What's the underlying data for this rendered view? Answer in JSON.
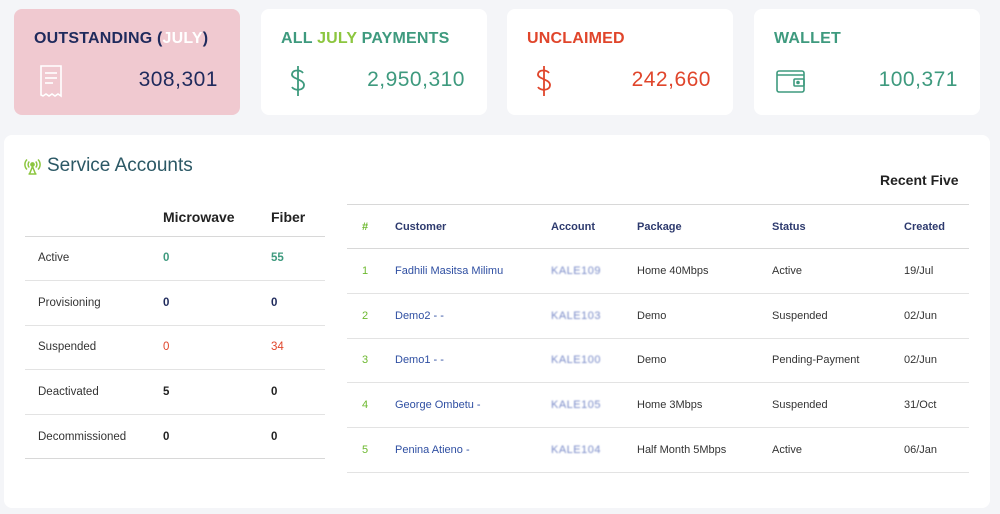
{
  "cards": {
    "outstanding": {
      "title_prefix": "OUTSTANDING (",
      "title_month": "JULY",
      "title_suffix": ")",
      "value": "308,301"
    },
    "payments": {
      "title_prefix": "ALL ",
      "title_month": "JULY",
      "title_suffix": " PAYMENTS",
      "value": "2,950,310"
    },
    "unclaimed": {
      "title": "UNCLAIMED",
      "value": "242,660"
    },
    "wallet": {
      "title": "WALLET",
      "value": "100,371"
    }
  },
  "colors": {
    "navy": "#1f2a5c",
    "teal": "#3e9a7e",
    "lime": "#8cc63f",
    "red": "#e0452b",
    "outstanding_bg": "#f0c9d0"
  },
  "icons": {
    "outstanding": "receipt-icon",
    "payments": "dollar-icon",
    "unclaimed": "dollar-icon",
    "wallet": "wallet-icon",
    "service_accounts": "antenna-signal-icon"
  },
  "service_accounts": {
    "title": "Service Accounts",
    "columns": [
      "",
      "Microwave",
      "Fiber"
    ],
    "rows": [
      {
        "label": "Active",
        "microwave": "0",
        "fiber": "55",
        "color": "#3e9a7e"
      },
      {
        "label": "Provisioning",
        "microwave": "0",
        "fiber": "0",
        "color": "#1f2a5c"
      },
      {
        "label": "Suspended",
        "microwave": "0",
        "fiber": "34",
        "color": "#e0452b"
      },
      {
        "label": "Deactivated",
        "microwave": "5",
        "fiber": "0",
        "color": "#222222"
      },
      {
        "label": "Decommissioned",
        "microwave": "0",
        "fiber": "0",
        "color": "#222222"
      }
    ]
  },
  "recent": {
    "title": "Recent Five",
    "columns": [
      "#",
      "Customer",
      "Account",
      "Package",
      "Status",
      "Created"
    ],
    "rows": [
      {
        "num": "1",
        "customer": "Fadhili Masitsa Milimu",
        "account": "KALE109",
        "package": "Home 40Mbps",
        "status": "Active",
        "created": "19/Jul"
      },
      {
        "num": "2",
        "customer": "Demo2 - -",
        "account": "KALE103",
        "package": "Demo",
        "status": "Suspended",
        "created": "02/Jun"
      },
      {
        "num": "3",
        "customer": "Demo1 - -",
        "account": "KALE100",
        "package": "Demo",
        "status": "Pending-Payment",
        "created": "02/Jun"
      },
      {
        "num": "4",
        "customer": "George Ombetu -",
        "account": "KALE105",
        "package": "Home 3Mbps",
        "status": "Suspended",
        "created": "31/Oct"
      },
      {
        "num": "5",
        "customer": "Penina Atieno -",
        "account": "KALE104",
        "package": "Half Month 5Mbps",
        "status": "Active",
        "created": "06/Jan"
      }
    ]
  }
}
